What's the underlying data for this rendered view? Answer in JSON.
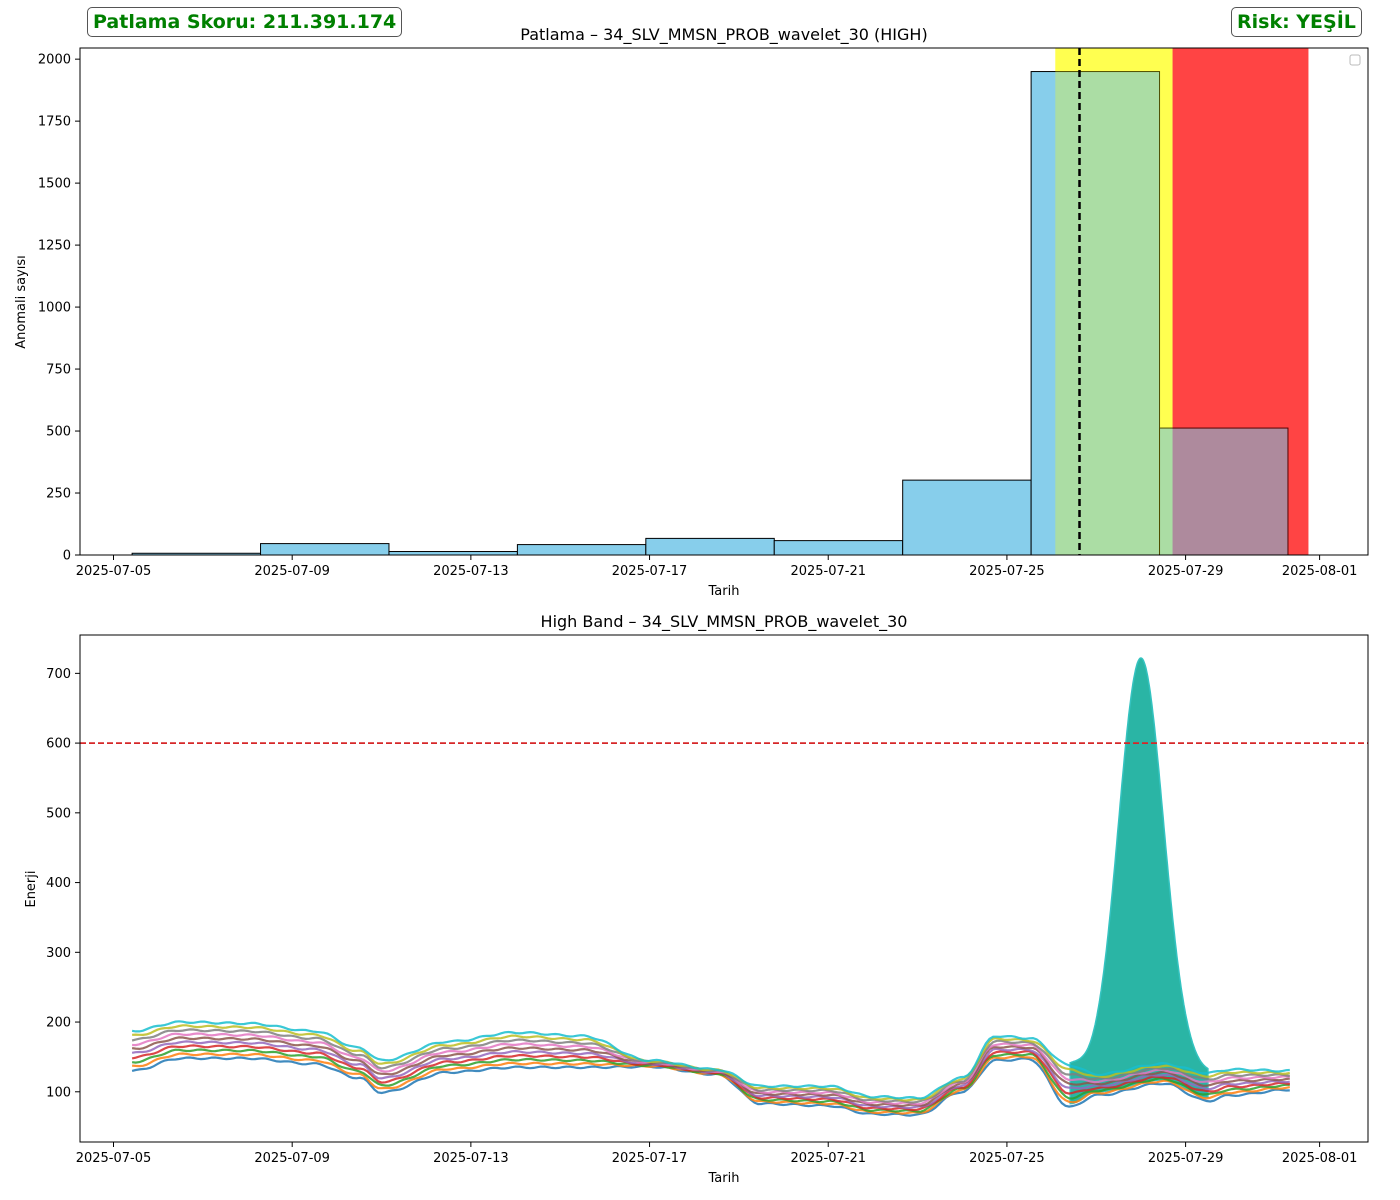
{
  "header": {
    "score_label": "Patlama Skoru: 211.391.174",
    "risk_label": "Risk: YEŞİL",
    "accent_color": "#008000"
  },
  "chart_data": [
    {
      "type": "bar",
      "title": "Patlama – 34_SLV_MMSN_PROB_wavelet_30 (HIGH)",
      "xlabel": "Tarih",
      "ylabel": "Anomali sayısı",
      "xlim": [
        "2025-07-04T06:00",
        "2025-08-02T02:00"
      ],
      "ylim": [
        0,
        2045
      ],
      "xticks": [
        "2025-07-05",
        "2025-07-09",
        "2025-07-13",
        "2025-07-17",
        "2025-07-21",
        "2025-07-25",
        "2025-07-29",
        "2025-08-01"
      ],
      "yticks": [
        0,
        250,
        500,
        750,
        1000,
        1250,
        1500,
        1750,
        2000
      ],
      "legend": "top-right (empty)",
      "bins": [
        {
          "start": "2025-07-05T10:00",
          "end": "2025-07-08T07:00",
          "value": 7
        },
        {
          "start": "2025-07-08T07:00",
          "end": "2025-07-11T04:00",
          "value": 46
        },
        {
          "start": "2025-07-11T04:00",
          "end": "2025-07-14T01:00",
          "value": 14
        },
        {
          "start": "2025-07-14T01:00",
          "end": "2025-07-16T22:00",
          "value": 42
        },
        {
          "start": "2025-07-16T22:00",
          "end": "2025-07-19T19:00",
          "value": 67
        },
        {
          "start": "2025-07-19T19:00",
          "end": "2025-07-22T16:00",
          "value": 58
        },
        {
          "start": "2025-07-22T16:00",
          "end": "2025-07-25T13:00",
          "value": 302
        },
        {
          "start": "2025-07-25T13:00",
          "end": "2025-07-28T10:00",
          "value": 1950
        },
        {
          "start": "2025-07-28T10:00",
          "end": "2025-07-31T07:00",
          "value": 512
        }
      ],
      "spans": [
        {
          "start": "2025-07-26T02:00",
          "end": "2025-07-28T17:00",
          "color": "#ffff00",
          "alpha": 0.55
        },
        {
          "start": "2025-07-28T17:00",
          "end": "2025-07-31T18:00",
          "color": "#ff0000",
          "alpha": 0.6
        }
      ],
      "vline": {
        "date": "2025-07-26T15:00",
        "style": "dashed",
        "color": "#000000"
      },
      "bar_color": "#87ceeb"
    },
    {
      "type": "line",
      "title": "High Band – 34_SLV_MMSN_PROB_wavelet_30",
      "xlabel": "Tarih",
      "ylabel": "Enerji",
      "xlim": [
        "2025-07-04T06:00",
        "2025-08-02T02:00"
      ],
      "ylim": [
        28,
        755
      ],
      "xticks": [
        "2025-07-05",
        "2025-07-09",
        "2025-07-13",
        "2025-07-17",
        "2025-07-21",
        "2025-07-25",
        "2025-07-29",
        "2025-08-01"
      ],
      "yticks": [
        100,
        200,
        300,
        400,
        500,
        600,
        700
      ],
      "threshold": {
        "value": 600,
        "color": "#d62728",
        "style": "dashed"
      },
      "series_count": 10,
      "series_colors": [
        "#1f77b4",
        "#ff7f0e",
        "#2ca02c",
        "#d62728",
        "#9467bd",
        "#8c564b",
        "#e377c2",
        "#7f7f7f",
        "#bcbd22",
        "#17becf"
      ],
      "base_envelope": {
        "x": [
          "2025-07-05T10:00",
          "2025-07-06T12:00",
          "2025-07-08T00:00",
          "2025-07-09T12:00",
          "2025-07-10T12:00",
          "2025-07-11T00:00",
          "2025-07-12T12:00",
          "2025-07-14T00:00",
          "2025-07-15T12:00",
          "2025-07-17T00:00",
          "2025-07-18T12:00",
          "2025-07-19T12:00",
          "2025-07-21T00:00",
          "2025-07-22T00:00",
          "2025-07-23T00:00",
          "2025-07-24T00:00",
          "2025-07-24T18:00",
          "2025-07-25T12:00",
          "2025-07-26T10:00",
          "2025-07-27T00:00",
          "2025-07-28T12:00",
          "2025-07-29T12:00",
          "2025-07-30T00:00",
          "2025-07-31T08:00"
        ],
        "low": [
          130,
          148,
          148,
          140,
          120,
          99,
          128,
          135,
          135,
          136,
          125,
          83,
          80,
          68,
          67,
          100,
          145,
          147,
          78,
          95,
          112,
          87,
          95,
          103
        ],
        "high": [
          187,
          200,
          198,
          187,
          163,
          145,
          172,
          185,
          180,
          145,
          132,
          108,
          108,
          93,
          91,
          120,
          180,
          177,
          138,
          125,
          140,
          127,
          132,
          130
        ]
      },
      "peak": {
        "start": "2025-07-26T10:00",
        "center": "2025-07-28T00:00",
        "end": "2025-07-29T12:00",
        "max": 722,
        "color": "#2ab5a5"
      }
    }
  ]
}
